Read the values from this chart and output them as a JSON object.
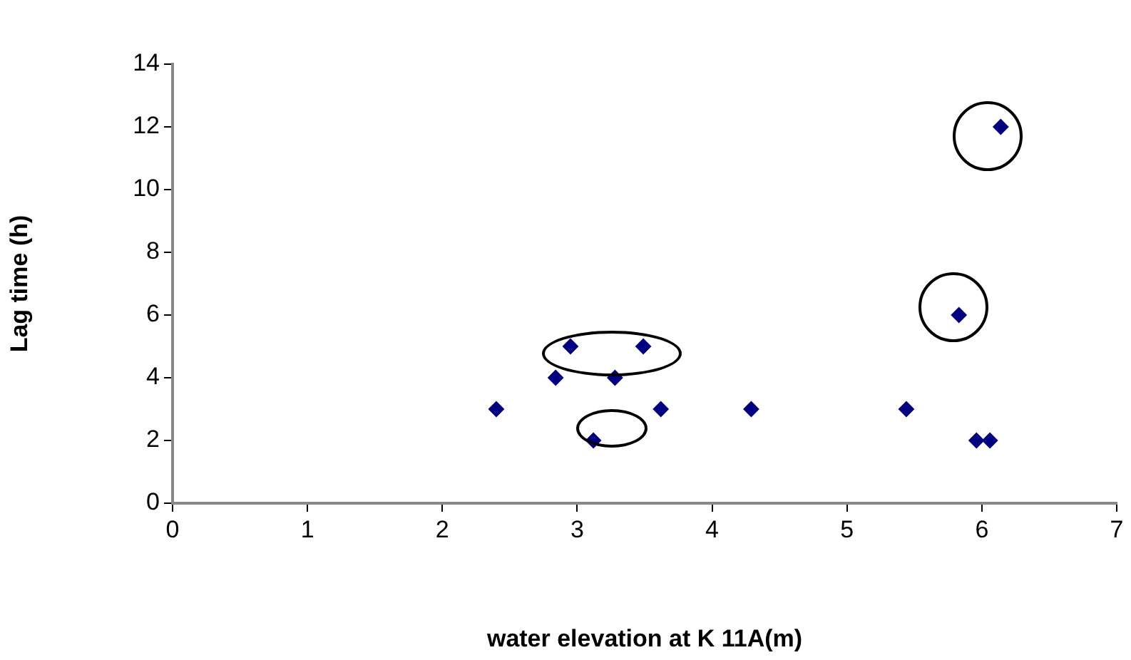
{
  "chart_data": {
    "type": "scatter",
    "xlabel": "water elevation at K 11A(m)",
    "ylabel": "Lag time (h)",
    "x": [
      2.4,
      2.84,
      2.95,
      3.12,
      3.28,
      3.49,
      3.62,
      4.29,
      5.44,
      5.83,
      5.96,
      6.06,
      6.14
    ],
    "series": [
      {
        "color": "#000080",
        "values": [
          3,
          4,
          5,
          2,
          4,
          5,
          3,
          3,
          3,
          6,
          2,
          2,
          12
        ]
      }
    ],
    "xlim": [
      0,
      7
    ],
    "xticks": [
      0,
      1,
      2,
      3,
      4,
      5,
      6,
      7
    ],
    "ylim": [
      0,
      14
    ],
    "yticks": [
      0,
      2,
      4,
      6,
      8,
      10,
      12,
      14
    ],
    "grid": false,
    "legend": false,
    "marker": "diamond"
  }
}
